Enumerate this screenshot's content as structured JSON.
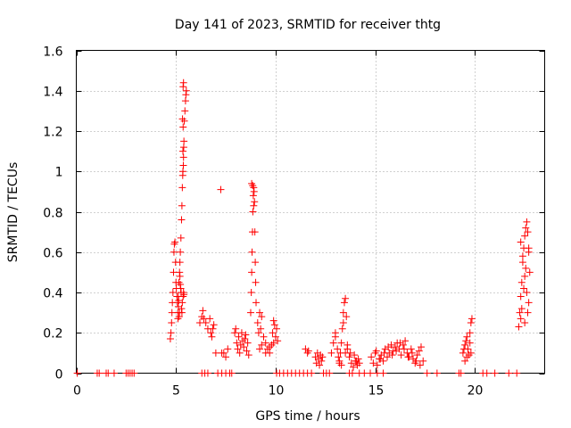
{
  "chart_data": {
    "type": "scatter",
    "title": "Day 141 of 2023, SRMTID for receiver thtg",
    "xlabel": "GPS time / hours",
    "ylabel": "SRMTID / TECUs",
    "xlim": [
      0,
      23.5
    ],
    "ylim": [
      0,
      1.6
    ],
    "xticks": [
      0,
      5,
      10,
      15,
      20
    ],
    "yticks": [
      0,
      0.2,
      0.4,
      0.6,
      0.8,
      1,
      1.2,
      1.4,
      1.6
    ],
    "xtick_labels": [
      "0",
      "5",
      "10",
      "15",
      "20"
    ],
    "ytick_labels": [
      "0",
      "0.2",
      "0.4",
      "0.6",
      "0.8",
      "1",
      "1.2",
      "1.4",
      "1.6"
    ],
    "grid": true,
    "marker": "plus",
    "color": "#ff0000",
    "series": [
      {
        "name": "SRMTID",
        "x": [
          0.05,
          1.05,
          1.15,
          1.5,
          1.6,
          1.9,
          2.5,
          2.6,
          2.7,
          2.8,
          2.9,
          6.3,
          6.45,
          6.6,
          7.1,
          7.3,
          7.5,
          7.7,
          7.8,
          10.05,
          10.2,
          10.4,
          10.6,
          10.8,
          11.0,
          11.2,
          11.4,
          11.6,
          11.8,
          12.4,
          12.55,
          12.7,
          13.7,
          13.85,
          14.2,
          14.45,
          14.75,
          15.1,
          15.4,
          17.6,
          18.1,
          19.2,
          19.3,
          20.4,
          20.6,
          21.0,
          21.7,
          22.1,
          4.72,
          4.75,
          4.78,
          4.8,
          4.82,
          4.85,
          4.88,
          4.9,
          4.92,
          4.95,
          4.98,
          5.0,
          5.02,
          5.05,
          5.08,
          5.1,
          5.12,
          5.15,
          5.18,
          5.2,
          5.22,
          5.25,
          5.28,
          5.3,
          5.32,
          5.35,
          5.38,
          5.4,
          5.42,
          5.45,
          5.48,
          5.5,
          5.52,
          5.36,
          5.38,
          5.33,
          5.36,
          5.39,
          5.35,
          5.37,
          5.34,
          5.38,
          5.36,
          5.4,
          5.3,
          5.32,
          5.28,
          5.26,
          5.24,
          5.22,
          5.2,
          5.18,
          5.16,
          5.14,
          5.12,
          5.1,
          6.2,
          6.3,
          6.35,
          6.4,
          6.5,
          6.6,
          6.7,
          6.75,
          6.8,
          6.85,
          6.9,
          7.0,
          7.3,
          7.4,
          7.5,
          7.6,
          7.25,
          7.95,
          8.0,
          8.05,
          8.1,
          8.15,
          8.2,
          8.25,
          8.3,
          8.35,
          8.4,
          8.45,
          8.5,
          8.55,
          8.6,
          8.65,
          8.75,
          8.78,
          8.8,
          8.82,
          8.84,
          8.86,
          8.88,
          8.9,
          8.92,
          8.94,
          8.96,
          8.98,
          9.0,
          9.02,
          8.8,
          8.85,
          8.9,
          9.1,
          9.2,
          9.3,
          9.4,
          9.5,
          9.6,
          9.7,
          9.8,
          9.85,
          9.9,
          9.95,
          10.0,
          10.05,
          10.1,
          9.2,
          9.3,
          9.5,
          9.7,
          9.9,
          9.15,
          9.25,
          11.5,
          11.6,
          11.65,
          12.0,
          12.05,
          12.1,
          12.15,
          12.2,
          12.25,
          12.3,
          12.35,
          12.8,
          12.9,
          13.0,
          13.1,
          13.15,
          13.2,
          13.25,
          13.3,
          13.35,
          13.4,
          13.45,
          13.5,
          13.55,
          13.6,
          13.2,
          13.3,
          13.5,
          13.0,
          13.4,
          13.6,
          13.7,
          13.8,
          13.9,
          14.0,
          14.1,
          14.15,
          14.2,
          13.75,
          13.95,
          14.05,
          14.8,
          14.9,
          15.0,
          15.1,
          15.2,
          15.3,
          15.4,
          15.5,
          15.6,
          15.7,
          15.8,
          15.9,
          16.0,
          16.1,
          16.2,
          16.3,
          16.4,
          16.5,
          16.6,
          16.7,
          16.8,
          16.9,
          17.0,
          17.1,
          17.2,
          17.3,
          17.4,
          15.05,
          15.25,
          15.45,
          15.65,
          15.85,
          16.05,
          16.25,
          16.45,
          16.65,
          16.85,
          17.05,
          17.25,
          19.4,
          19.45,
          19.5,
          19.55,
          19.6,
          19.65,
          19.7,
          19.75,
          19.8,
          19.85,
          19.75,
          19.8,
          19.6,
          19.5,
          22.2,
          22.25,
          22.3,
          22.35,
          22.4,
          22.45,
          22.5,
          22.55,
          22.6,
          22.65,
          22.7,
          22.75,
          22.3,
          22.4,
          22.5,
          22.6,
          22.7,
          22.35,
          22.45,
          22.55,
          22.65,
          22.3,
          22.5,
          22.7
        ],
        "y": [
          0,
          0,
          0,
          0,
          0,
          0,
          0,
          0,
          0,
          0,
          0,
          0,
          0,
          0,
          0,
          0,
          0,
          0,
          0,
          0,
          0,
          0,
          0,
          0,
          0,
          0,
          0,
          0,
          0,
          0,
          0,
          0,
          0,
          0,
          0,
          0,
          0,
          0,
          0,
          0,
          0,
          0,
          0,
          0,
          0,
          0,
          0,
          0,
          0.17,
          0.2,
          0.25,
          0.3,
          0.35,
          0.4,
          0.5,
          0.6,
          0.64,
          0.65,
          0.55,
          0.45,
          0.42,
          0.38,
          0.35,
          0.3,
          0.33,
          0.45,
          0.5,
          0.55,
          0.6,
          0.67,
          0.76,
          0.83,
          0.92,
          1.0,
          1.07,
          1.15,
          1.25,
          1.3,
          1.35,
          1.38,
          1.4,
          1.42,
          1.44,
          1.26,
          1.22,
          1.12,
          1.1,
          1.03,
          0.98,
          0.4,
          0.38,
          0.39,
          0.3,
          0.35,
          0.32,
          0.4,
          0.42,
          0.44,
          0.48,
          0.3,
          0.28,
          0.36,
          0.38,
          0.27,
          0.25,
          0.28,
          0.31,
          0.27,
          0.25,
          0.22,
          0.27,
          0.2,
          0.18,
          0.22,
          0.24,
          0.1,
          0.1,
          0.1,
          0.08,
          0.12,
          0.91,
          0.2,
          0.22,
          0.15,
          0.12,
          0.18,
          0.1,
          0.14,
          0.2,
          0.16,
          0.13,
          0.17,
          0.19,
          0.11,
          0.15,
          0.09,
          0.3,
          0.4,
          0.5,
          0.6,
          0.7,
          0.8,
          0.88,
          0.92,
          0.9,
          0.85,
          0.7,
          0.55,
          0.45,
          0.35,
          0.94,
          0.93,
          0.83,
          0.25,
          0.3,
          0.28,
          0.18,
          0.15,
          0.12,
          0.1,
          0.14,
          0.2,
          0.26,
          0.24,
          0.18,
          0.22,
          0.16,
          0.12,
          0.14,
          0.1,
          0.13,
          0.15,
          0.2,
          0.22,
          0.12,
          0.1,
          0.11,
          0.08,
          0.05,
          0.1,
          0.07,
          0.04,
          0.09,
          0.06,
          0.08,
          0.1,
          0.15,
          0.2,
          0.12,
          0.08,
          0.05,
          0.1,
          0.15,
          0.22,
          0.3,
          0.35,
          0.37,
          0.28,
          0.14,
          0.06,
          0.04,
          0.1,
          0.18,
          0.25,
          0.12,
          0.08,
          0.05,
          0.03,
          0.06,
          0.04,
          0.07,
          0.05,
          0.1,
          0.09,
          0.06,
          0.08,
          0.05,
          0.1,
          0.04,
          0.07,
          0.09,
          0.06,
          0.12,
          0.08,
          0.1,
          0.14,
          0.11,
          0.13,
          0.15,
          0.12,
          0.09,
          0.14,
          0.16,
          0.1,
          0.08,
          0.12,
          0.07,
          0.05,
          0.09,
          0.11,
          0.13,
          0.06,
          0.11,
          0.07,
          0.1,
          0.13,
          0.09,
          0.11,
          0.15,
          0.12,
          0.08,
          0.1,
          0.06,
          0.04,
          0.1,
          0.12,
          0.14,
          0.16,
          0.18,
          0.12,
          0.09,
          0.2,
          0.25,
          0.27,
          0.15,
          0.1,
          0.08,
          0.06,
          0.23,
          0.3,
          0.38,
          0.45,
          0.55,
          0.62,
          0.68,
          0.72,
          0.75,
          0.7,
          0.6,
          0.5,
          0.65,
          0.58,
          0.48,
          0.4,
          0.35,
          0.32,
          0.42,
          0.52,
          0.3,
          0.27,
          0.25,
          0.62
        ]
      }
    ]
  }
}
